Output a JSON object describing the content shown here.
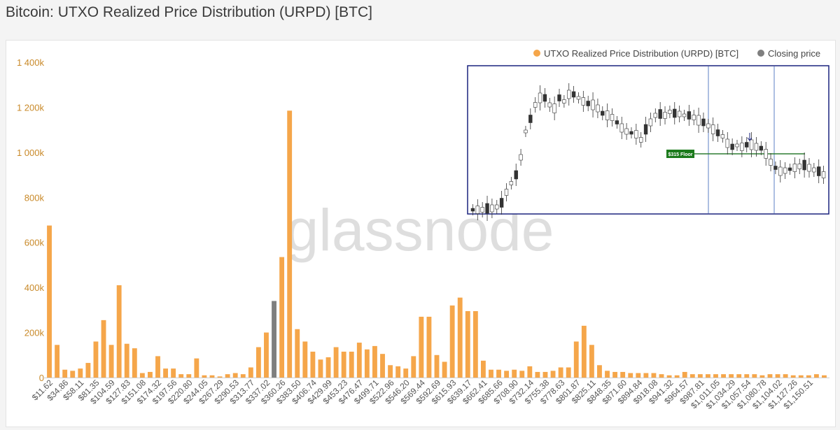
{
  "page": {
    "title": "Bitcoin: UTXO Realized Price Distribution (URPD) [BTC]"
  },
  "watermark": "glassnode",
  "colors": {
    "bar": "#f5a64a",
    "closing": "#7f7f7f",
    "axis_text": "#c98a2a",
    "inset_border": "#1a237e"
  },
  "legend": [
    {
      "label": "UTXO Realized Price Distribution (URPD) [BTC]",
      "color": "#f5a64a"
    },
    {
      "label": "Closing price",
      "color": "#7f7f7f"
    }
  ],
  "inset": {
    "floor_label": "$315 Floor"
  },
  "chart_data": {
    "type": "bar",
    "ylim": [
      0,
      1400000
    ],
    "y_ticks": [
      {
        "value": 0,
        "label": "0"
      },
      {
        "value": 200000,
        "label": "200k"
      },
      {
        "value": 400000,
        "label": "400k"
      },
      {
        "value": 600000,
        "label": "600k"
      },
      {
        "value": 800000,
        "label": "800k"
      },
      {
        "value": 1000000,
        "label": "1 000k"
      },
      {
        "value": 1200000,
        "label": "1 200k"
      },
      {
        "value": 1400000,
        "label": "1 400k"
      }
    ],
    "x_tick_labels": [
      "$11.62",
      "$34.86",
      "$58.11",
      "$81.35",
      "$104.59",
      "$127.83",
      "$151.08",
      "$174.32",
      "$197.56",
      "$220.80",
      "$244.05",
      "$267.29",
      "$290.53",
      "$313.77",
      "$337.02",
      "$360.26",
      "$383.50",
      "$406.74",
      "$429.99",
      "$453.23",
      "$476.47",
      "$499.71",
      "$522.96",
      "$546.20",
      "$569.44",
      "$592.69",
      "$615.93",
      "$639.17",
      "$662.41",
      "$685.66",
      "$708.90",
      "$732.14",
      "$755.38",
      "$778.63",
      "$801.87",
      "$825.11",
      "$848.35",
      "$871.60",
      "$894.84",
      "$918.08",
      "$941.32",
      "$964.57",
      "$987.81",
      "$1,011.05",
      "$1,034.29",
      "$1,057.54",
      "$1,080.78",
      "$1,104.02",
      "$1,127.26",
      "$1,150.51"
    ],
    "series": [
      {
        "name": "UTXO Realized Price Distribution (URPD) [BTC]",
        "values": [
          675000,
          145000,
          35000,
          30000,
          40000,
          65000,
          160000,
          255000,
          145000,
          410000,
          150000,
          130000,
          20000,
          25000,
          95000,
          40000,
          40000,
          15000,
          15000,
          85000,
          10000,
          10000,
          5000,
          15000,
          20000,
          15000,
          45000,
          135000,
          200000,
          0,
          535000,
          1185000,
          215000,
          160000,
          115000,
          80000,
          90000,
          135000,
          115000,
          115000,
          155000,
          125000,
          140000,
          105000,
          55000,
          50000,
          40000,
          95000,
          270000,
          270000,
          100000,
          70000,
          320000,
          355000,
          295000,
          295000,
          75000,
          35000,
          35000,
          30000,
          35000,
          30000,
          50000,
          25000,
          25000,
          30000,
          45000,
          45000,
          160000,
          230000,
          145000,
          55000,
          30000,
          25000,
          25000,
          20000,
          20000,
          20000,
          20000,
          15000,
          10000,
          10000,
          25000,
          15000,
          15000,
          15000,
          15000,
          15000,
          15000,
          15000,
          15000,
          15000,
          10000,
          15000,
          15000,
          15000,
          10000,
          10000,
          10000,
          15000,
          10000
        ]
      },
      {
        "name": "Closing price",
        "values": [
          0,
          0,
          0,
          0,
          0,
          0,
          0,
          0,
          0,
          0,
          0,
          0,
          0,
          0,
          0,
          0,
          0,
          0,
          0,
          0,
          0,
          0,
          0,
          0,
          0,
          0,
          0,
          0,
          0,
          340000,
          0,
          0,
          0,
          0,
          0,
          0,
          0,
          0,
          0,
          0,
          0,
          0,
          0,
          0,
          0,
          0,
          0,
          0,
          0,
          0,
          0,
          0,
          0,
          0,
          0,
          0,
          0,
          0,
          0,
          0,
          0,
          0,
          0,
          0,
          0,
          0,
          0,
          0,
          0,
          0,
          0,
          0,
          0,
          0,
          0,
          0,
          0,
          0,
          0,
          0,
          0,
          0,
          0,
          0,
          0,
          0,
          0,
          0,
          0,
          0,
          0,
          0,
          0,
          0,
          0,
          0,
          0,
          0,
          0,
          0,
          0
        ]
      }
    ]
  }
}
